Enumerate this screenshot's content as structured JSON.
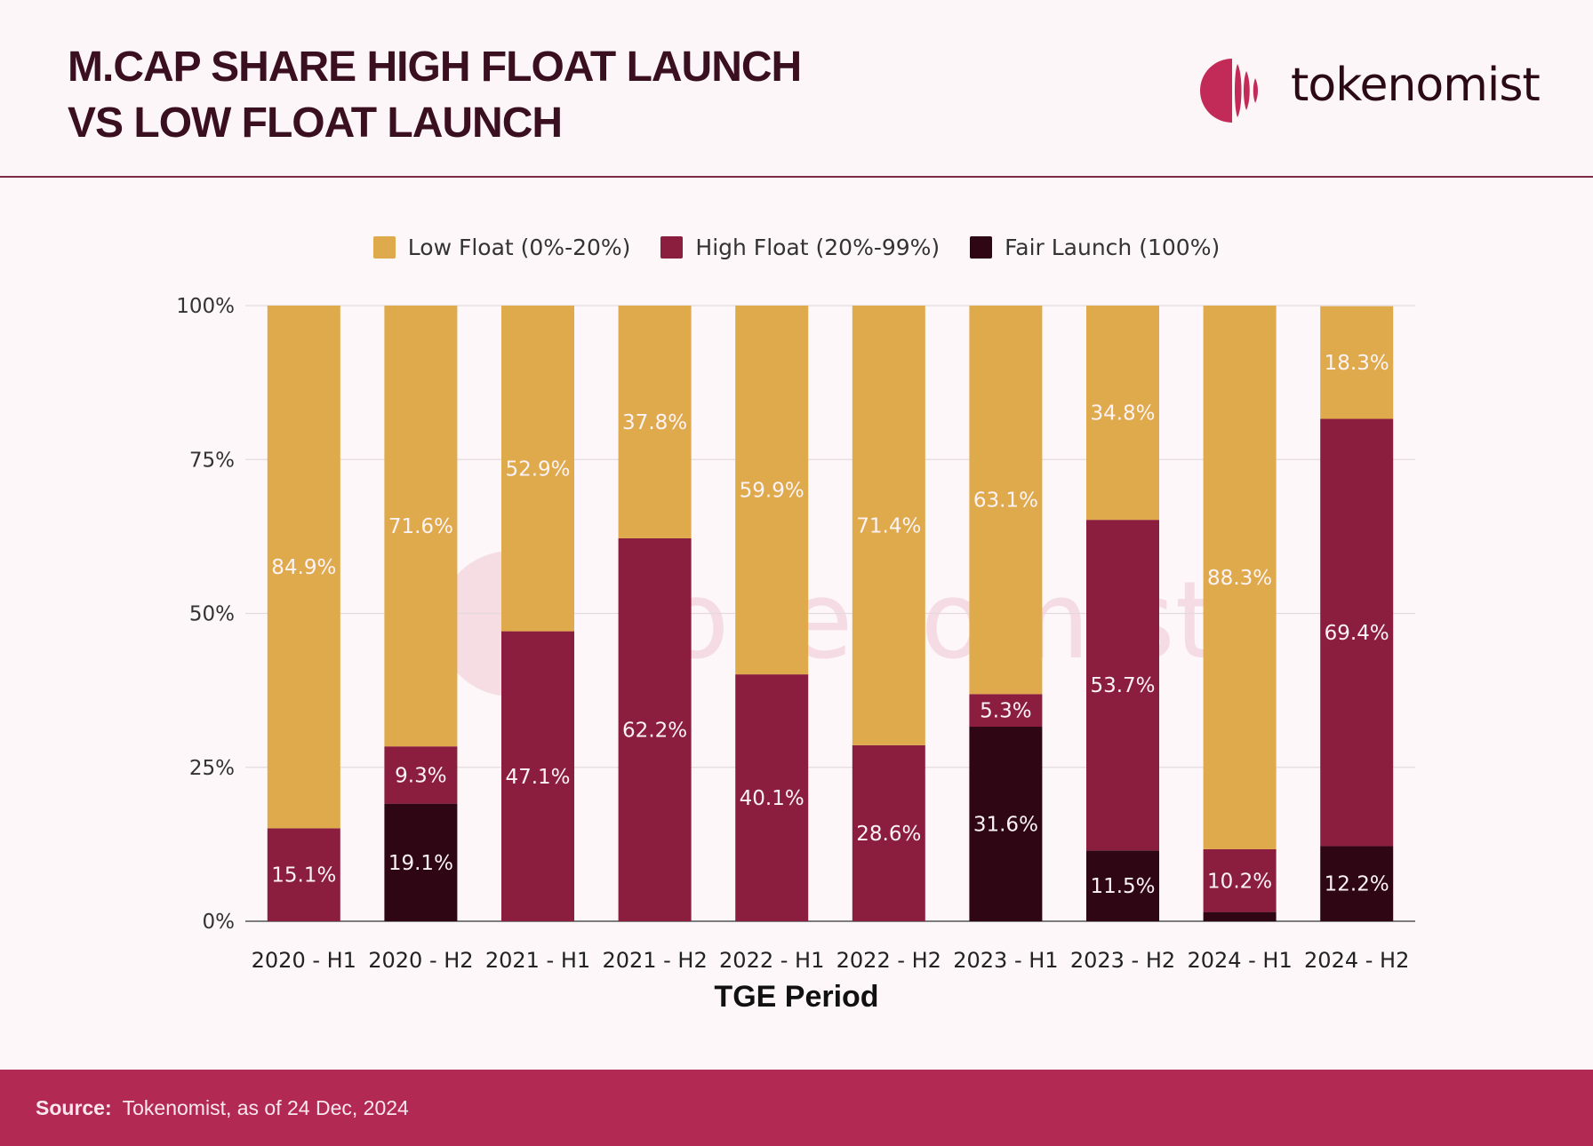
{
  "header": {
    "title_line1": "M.CAP SHARE HIGH FLOAT LAUNCH",
    "title_line2": "VS LOW FLOAT LAUNCH",
    "logo_text": "tokenomist"
  },
  "footer": {
    "source_label": "Source:",
    "source_text": "Tokenomist, as of 24 Dec, 2024"
  },
  "watermark": "tokenomist",
  "colors": {
    "low_float": "#deaa4b",
    "high_float": "#8b1e3f",
    "fair_launch": "#2e0614",
    "brand": "#c22b58"
  },
  "chart_data": {
    "type": "bar",
    "stacked": true,
    "xlabel": "TGE Period",
    "ylabel": "",
    "ylim": [
      0,
      100
    ],
    "yticks": [
      "0%",
      "25%",
      "50%",
      "75%",
      "100%"
    ],
    "legend_position": "top-center",
    "grid": true,
    "categories": [
      "2020 - H1",
      "2020 - H2",
      "2021 - H1",
      "2021 - H2",
      "2022 - H1",
      "2022 - H2",
      "2023 - H1",
      "2023 - H2",
      "2024 - H1",
      "2024 - H2"
    ],
    "series": [
      {
        "name": "Fair Launch (100%)",
        "color": "#2e0614",
        "values": [
          0,
          19.1,
          0,
          0,
          0,
          0,
          31.6,
          11.5,
          1.5,
          12.2
        ],
        "labels": [
          "",
          "19.1%",
          "",
          "",
          "",
          "",
          "31.6%",
          "11.5%",
          "",
          "12.2%"
        ]
      },
      {
        "name": "High Float (20%-99%)",
        "color": "#8b1e3f",
        "values": [
          15.1,
          9.3,
          47.1,
          62.2,
          40.1,
          28.6,
          5.3,
          53.7,
          10.2,
          69.4
        ],
        "labels": [
          "15.1%",
          "9.3%",
          "47.1%",
          "62.2%",
          "40.1%",
          "28.6%",
          "5.3%",
          "53.7%",
          "10.2%",
          "69.4%"
        ]
      },
      {
        "name": "Low Float (0%-20%)",
        "color": "#deaa4b",
        "values": [
          84.9,
          71.6,
          52.9,
          37.8,
          59.9,
          71.4,
          63.1,
          34.8,
          88.3,
          18.3
        ],
        "labels": [
          "84.9%",
          "71.6%",
          "52.9%",
          "37.8%",
          "59.9%",
          "71.4%",
          "63.1%",
          "34.8%",
          "88.3%",
          "18.3%"
        ]
      }
    ]
  }
}
